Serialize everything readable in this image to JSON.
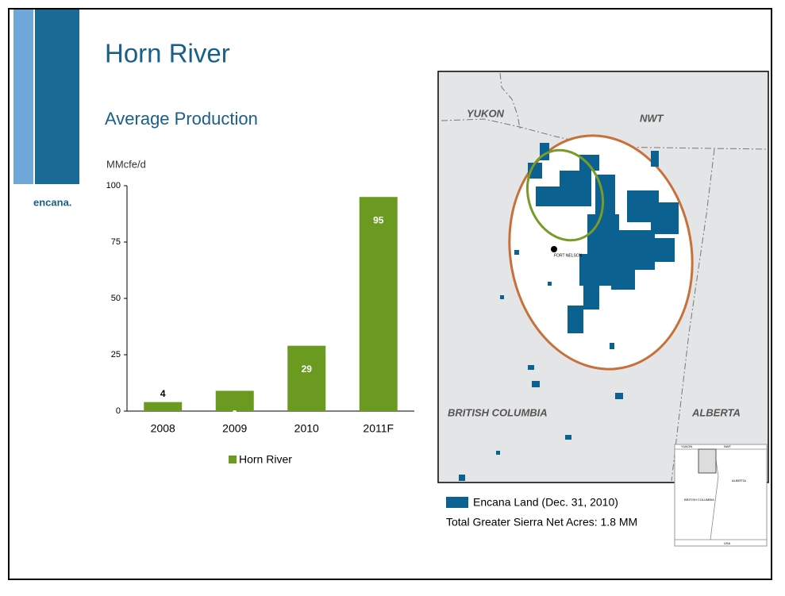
{
  "slide": {
    "title": "Horn River",
    "logo": "encana."
  },
  "chart_data": {
    "type": "bar",
    "title": "Average Production",
    "y_label": "MMcfe/d",
    "categories": [
      "2008",
      "2009",
      "2010",
      "2011F"
    ],
    "series": [
      {
        "name": "Horn River",
        "color": "#6a9a1f",
        "values": [
          4,
          9,
          29,
          95
        ]
      }
    ],
    "ylim": [
      0,
      100
    ],
    "yticks": [
      0,
      25,
      50,
      75,
      100
    ],
    "grid": false
  },
  "map": {
    "labels": [
      "YUKON",
      "NWT",
      "BRITISH COLUMBIA",
      "ALBERTA",
      "FORT NELSON"
    ],
    "inset_labels": [
      "YUKON",
      "NWT",
      "ALBERTA",
      "BRITISH COLUMBIA",
      "USA"
    ],
    "legend": "Encana Land (Dec. 31, 2010)",
    "note": "Total Greater Sierra Net Acres: 1.8 MM"
  }
}
